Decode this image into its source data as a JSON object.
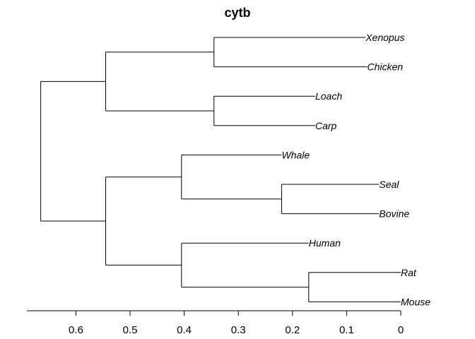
{
  "chart_data": {
    "type": "dendrogram",
    "title": "cytb",
    "xlabel": "",
    "ylabel": "",
    "xlim": [
      0.7,
      0
    ],
    "x_ticks": [
      0.6,
      0.5,
      0.4,
      0.3,
      0.2,
      0.1,
      0
    ],
    "x_tick_labels": [
      "0.6",
      "0.5",
      "0.4",
      "0.3",
      "0.2",
      "0.1",
      "0"
    ],
    "leaves": [
      "Xenopus",
      "Chicken",
      "Loach",
      "Carp",
      "Whale",
      "Seal",
      "Bovine",
      "Human",
      "Rat",
      "Mouse"
    ],
    "leaf_heights": {
      "Xenopus": 0.065,
      "Chicken": 0.062,
      "Loach": 0.158,
      "Carp": 0.158,
      "Whale": 0.22,
      "Seal": 0.04,
      "Bovine": 0.04,
      "Human": 0.17,
      "Rat": 0.0,
      "Mouse": 0.0
    },
    "merges": [
      {
        "id": "n1",
        "children": [
          "Xenopus",
          "Chicken"
        ],
        "height": 0.345
      },
      {
        "id": "n2",
        "children": [
          "Loach",
          "Carp"
        ],
        "height": 0.345
      },
      {
        "id": "n3",
        "children": [
          "n1",
          "n2"
        ],
        "height": 0.545
      },
      {
        "id": "n4",
        "children": [
          "Seal",
          "Bovine"
        ],
        "height": 0.22
      },
      {
        "id": "n5",
        "children": [
          "Whale",
          "n4"
        ],
        "height": 0.405
      },
      {
        "id": "n6",
        "children": [
          "Rat",
          "Mouse"
        ],
        "height": 0.17
      },
      {
        "id": "n7",
        "children": [
          "Human",
          "n6"
        ],
        "height": 0.405
      },
      {
        "id": "n8",
        "children": [
          "n5",
          "n7"
        ],
        "height": 0.545
      },
      {
        "id": "root",
        "children": [
          "n3",
          "n8"
        ],
        "height": 0.665
      }
    ],
    "grid": false,
    "legend": "none"
  }
}
